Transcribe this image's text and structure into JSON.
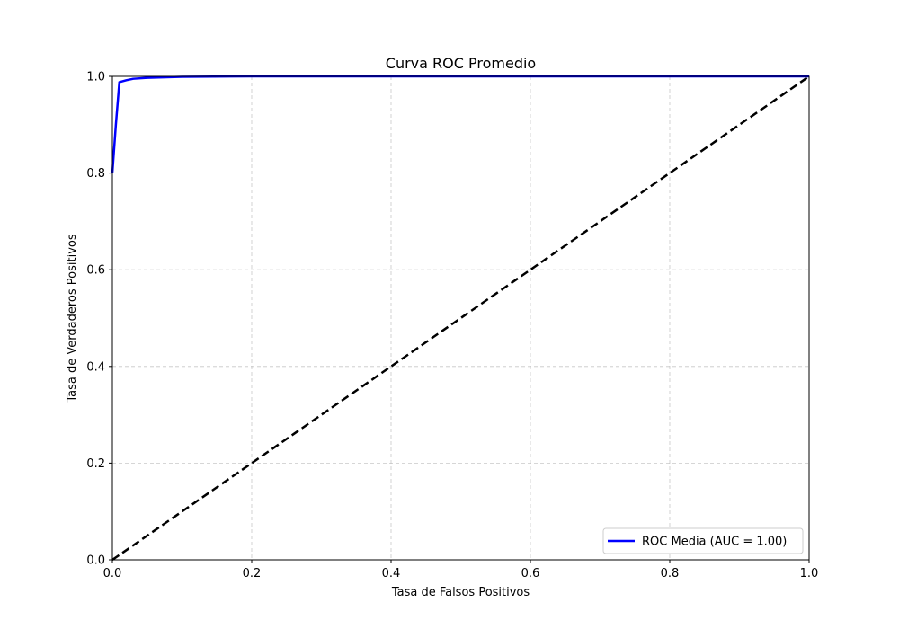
{
  "chart_data": {
    "type": "line",
    "title": "Curva ROC Promedio",
    "xlabel": "Tasa de Falsos Positivos",
    "ylabel": "Tasa de Verdaderos Positivos",
    "xlim": [
      0,
      1
    ],
    "ylim": [
      0,
      1
    ],
    "xticks": [
      0.0,
      0.2,
      0.4,
      0.6,
      0.8,
      1.0
    ],
    "yticks": [
      0.0,
      0.2,
      0.4,
      0.6,
      0.8,
      1.0
    ],
    "xtick_labels": [
      "0.0",
      "0.2",
      "0.4",
      "0.6",
      "0.8",
      "1.0"
    ],
    "ytick_labels": [
      "0.0",
      "0.2",
      "0.4",
      "0.6",
      "0.8",
      "1.0"
    ],
    "grid": true,
    "legend_position": "lower-right",
    "series": [
      {
        "name": "ROC Media (AUC = 1.00)",
        "color": "#0000ff",
        "style": "solid",
        "x": [
          0.0,
          0.002,
          0.005,
          0.01,
          0.02,
          0.03,
          0.05,
          0.1,
          0.2,
          0.4,
          0.6,
          0.8,
          1.0
        ],
        "y": [
          0.8,
          0.84,
          0.9,
          0.988,
          0.992,
          0.995,
          0.997,
          0.999,
          1.0,
          1.0,
          1.0,
          1.0,
          1.0
        ]
      },
      {
        "name": "",
        "color": "#000000",
        "style": "dashed",
        "x": [
          0.0,
          1.0
        ],
        "y": [
          0.0,
          1.0
        ]
      }
    ]
  }
}
